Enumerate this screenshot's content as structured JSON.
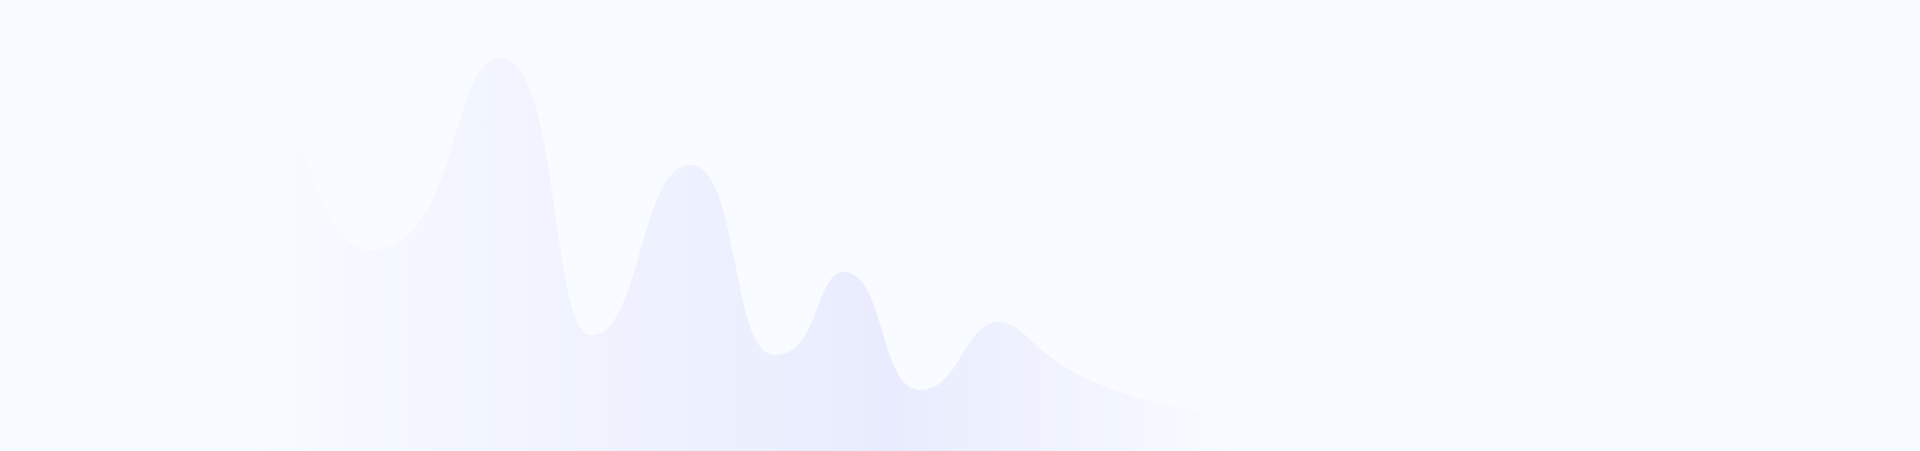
{
  "background": {
    "base_color": "#f8fbff",
    "wave_gradient": {
      "start_color": "#f8fbff",
      "peak_color": "#e9ecfe",
      "end_color": "#f8fbff"
    },
    "icon": "decorative-wave-shape"
  }
}
